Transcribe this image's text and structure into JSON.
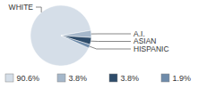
{
  "chart_data": {
    "type": "pie",
    "categories": [
      "WHITE",
      "A.I.",
      "ASIAN",
      "HISPANIC"
    ],
    "values": [
      90.6,
      3.8,
      3.8,
      1.9
    ],
    "value_labels": [
      "90.6%",
      "3.8%",
      "3.8%",
      "1.9%"
    ],
    "colors": [
      "#d5dee8",
      "#a5b7ca",
      "#2e4c6a",
      "#6e8baa"
    ]
  }
}
